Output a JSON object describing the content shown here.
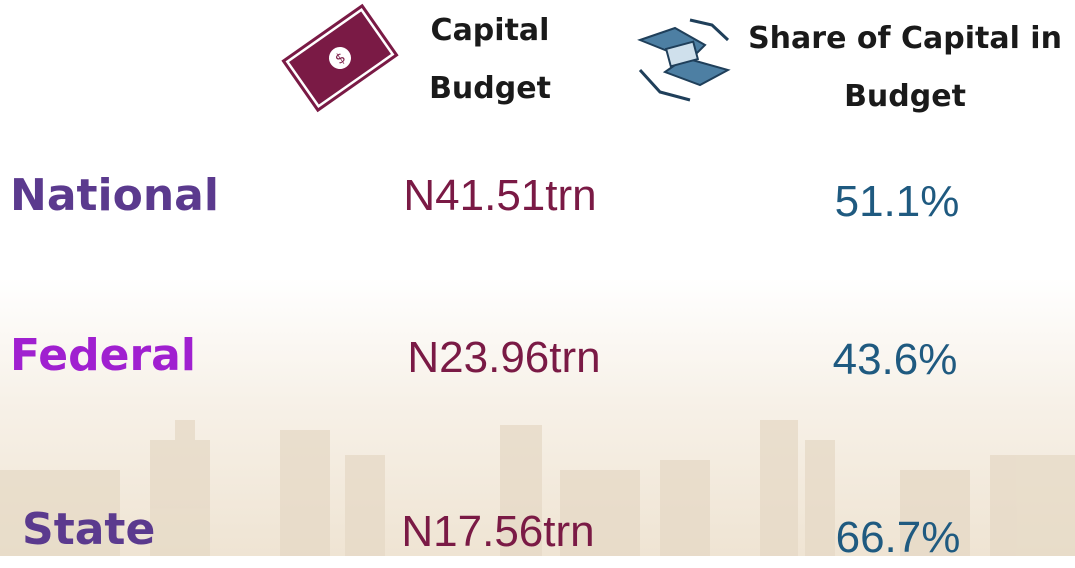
{
  "header": {
    "columns": [
      "Capital Budget",
      "Share of Capital in Budget"
    ]
  },
  "table": {
    "rows": [
      [
        "National",
        "N41.51trn",
        "51.1%"
      ],
      [
        "Federal",
        "N23.96trn",
        "43.6%"
      ],
      [
        "State",
        "N17.56trn",
        "66.7%"
      ]
    ]
  }
}
